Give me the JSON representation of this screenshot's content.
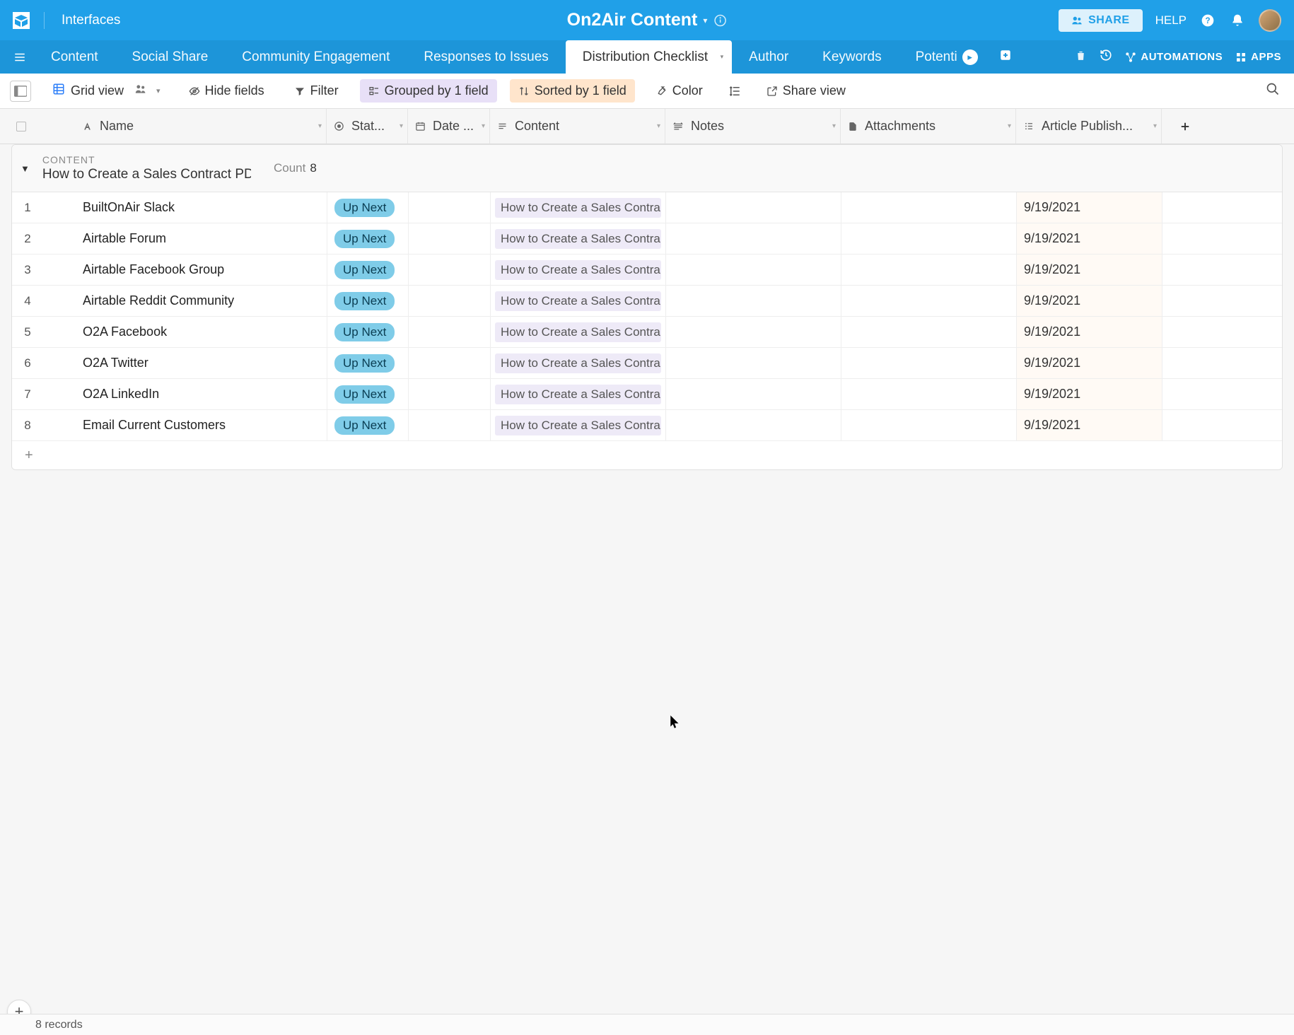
{
  "colors": {
    "topbar_bg": "#20a0e8",
    "tabbar_bg": "#1d95d9",
    "status_pill_bg": "#7fcce8",
    "content_chip_bg": "#eeeaf7",
    "grouped_bg": "#e8e0f7",
    "sorted_bg": "#ffe5cc",
    "publish_bg": "#fffaf5"
  },
  "top": {
    "interfaces": "Interfaces",
    "title": "On2Air Content",
    "share": "SHARE",
    "help": "HELP"
  },
  "tabs": {
    "items": [
      "Content",
      "Social Share",
      "Community Engagement",
      "Responses to Issues",
      "Distribution Checklist",
      "Author",
      "Keywords",
      "Potenti"
    ],
    "active_index": 4,
    "automations": "AUTOMATIONS",
    "apps": "APPS"
  },
  "toolbar": {
    "view_name": "Grid view",
    "hide_fields": "Hide fields",
    "filter": "Filter",
    "grouped": "Grouped by 1 field",
    "sorted": "Sorted by 1 field",
    "color": "Color",
    "share_view": "Share view"
  },
  "columns": {
    "c0": "Name",
    "c1": "Stat...",
    "c2": "Date ...",
    "c3": "Content",
    "c4": "Notes",
    "c5": "Attachments",
    "c6": "Article Publish..."
  },
  "group": {
    "label": "CONTENT",
    "title": "How to Create a Sales Contract PD",
    "count_label": "Count",
    "count": "8"
  },
  "rows": [
    {
      "n": "1",
      "name": "BuiltOnAir Slack",
      "status": "Up Next",
      "content": "How to Create a Sales Contra",
      "publish": "9/19/2021"
    },
    {
      "n": "2",
      "name": "Airtable Forum",
      "status": "Up Next",
      "content": "How to Create a Sales Contra",
      "publish": "9/19/2021"
    },
    {
      "n": "3",
      "name": "Airtable Facebook Group",
      "status": "Up Next",
      "content": "How to Create a Sales Contra",
      "publish": "9/19/2021"
    },
    {
      "n": "4",
      "name": "Airtable Reddit Community",
      "status": "Up Next",
      "content": "How to Create a Sales Contra",
      "publish": "9/19/2021"
    },
    {
      "n": "5",
      "name": "O2A Facebook",
      "status": "Up Next",
      "content": "How to Create a Sales Contra",
      "publish": "9/19/2021"
    },
    {
      "n": "6",
      "name": "O2A Twitter",
      "status": "Up Next",
      "content": "How to Create a Sales Contra",
      "publish": "9/19/2021"
    },
    {
      "n": "7",
      "name": "O2A LinkedIn",
      "status": "Up Next",
      "content": "How to Create a Sales Contra",
      "publish": "9/19/2021"
    },
    {
      "n": "8",
      "name": "Email Current Customers",
      "status": "Up Next",
      "content": "How to Create a Sales Contra",
      "publish": "9/19/2021"
    }
  ],
  "footer": {
    "records": "8 records"
  }
}
